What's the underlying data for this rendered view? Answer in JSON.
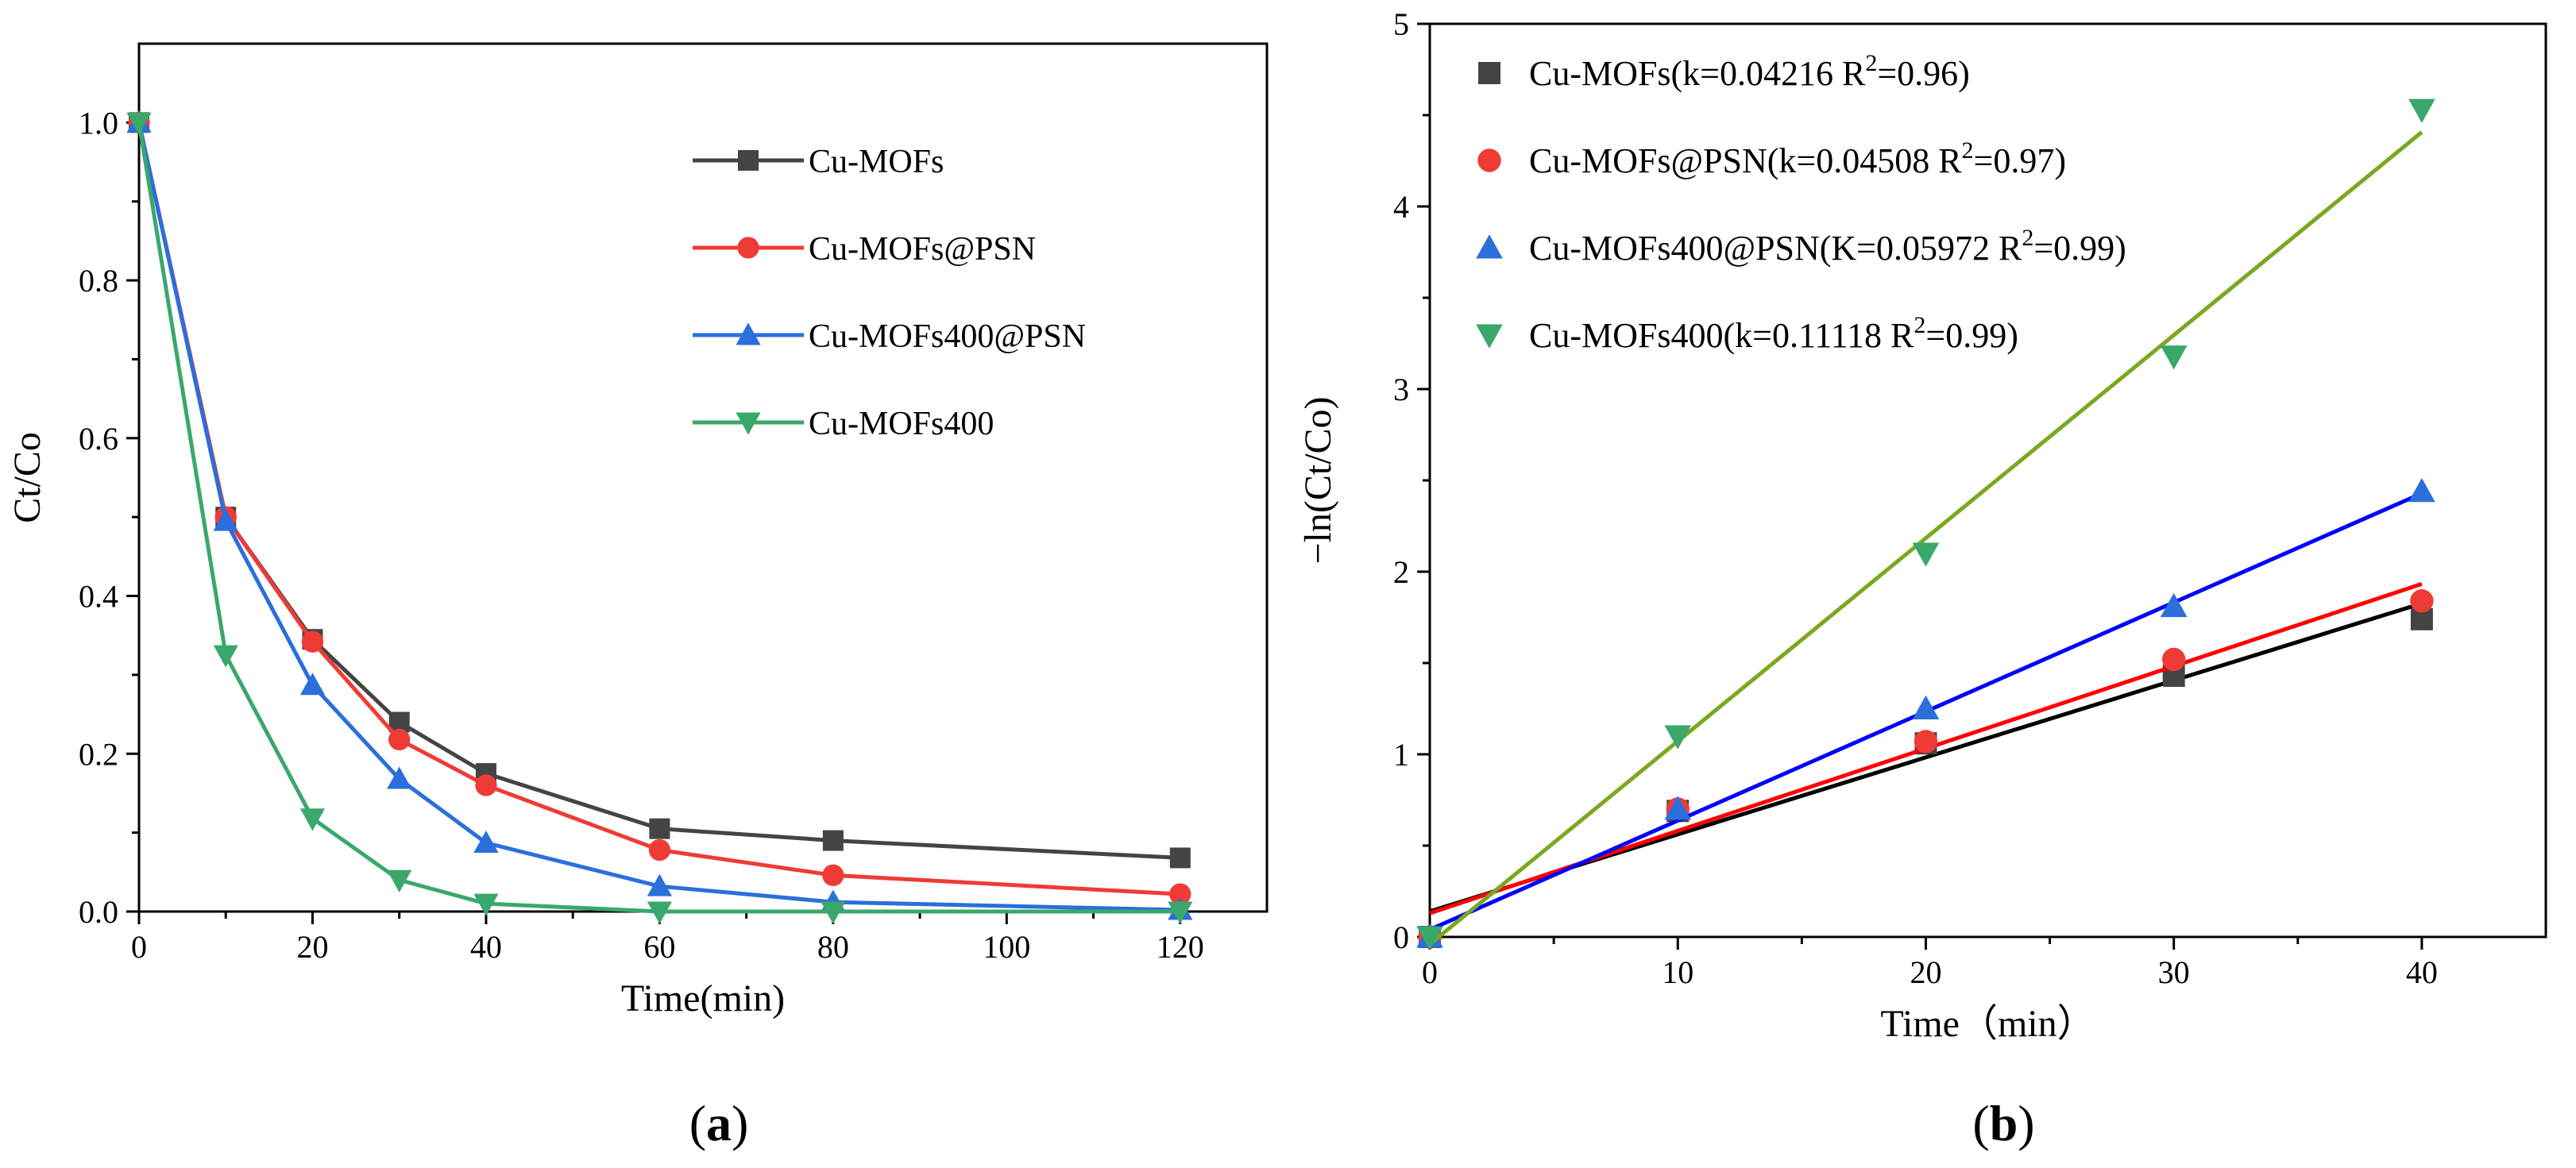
{
  "chart_data": [
    {
      "type": "line",
      "panel_label": "a",
      "xlabel": "Time(min)",
      "ylabel": "Ct/Co",
      "xlim": [
        0,
        130
      ],
      "ylim": [
        0,
        1.1
      ],
      "xticks": [
        0,
        20,
        40,
        60,
        80,
        100,
        120
      ],
      "yticks": [
        0.0,
        0.2,
        0.4,
        0.6,
        0.8,
        1.0
      ],
      "xtick_labels": [
        "0",
        "20",
        "40",
        "60",
        "80",
        "100",
        "120"
      ],
      "ytick_labels": [
        "0.0",
        "0.2",
        "0.4",
        "0.6",
        "0.8",
        "1.0"
      ],
      "legend_position": "top-right",
      "series": [
        {
          "name": "Cu-MOFs",
          "color": "#444444",
          "marker": "square",
          "x": [
            0,
            10,
            20,
            30,
            40,
            60,
            80,
            120
          ],
          "y": [
            1.0,
            0.5,
            0.345,
            0.24,
            0.175,
            0.105,
            0.09,
            0.068
          ]
        },
        {
          "name": "Cu-MOFs@PSN",
          "color": "#ef3b36",
          "marker": "circle",
          "x": [
            0,
            10,
            20,
            30,
            40,
            60,
            80,
            120
          ],
          "y": [
            1.0,
            0.5,
            0.342,
            0.218,
            0.16,
            0.078,
            0.046,
            0.022
          ]
        },
        {
          "name": "Cu-MOFs400@PSN",
          "color": "#2a6fdb",
          "marker": "triangle-up",
          "x": [
            0,
            10,
            20,
            30,
            40,
            60,
            80,
            120
          ],
          "y": [
            1.0,
            0.495,
            0.287,
            0.168,
            0.087,
            0.032,
            0.012,
            0.002
          ]
        },
        {
          "name": "Cu-MOFs400",
          "color": "#3aa86b",
          "marker": "triangle-down",
          "x": [
            0,
            10,
            20,
            30,
            40,
            60,
            80,
            120
          ],
          "y": [
            1.0,
            0.325,
            0.118,
            0.04,
            0.01,
            0.0,
            0.0,
            0.0
          ]
        }
      ]
    },
    {
      "type": "scatter",
      "panel_label": "b",
      "xlabel": "Time（min）",
      "ylabel": "−ln(Ct/Co)",
      "xlim": [
        0,
        45
      ],
      "ylim": [
        0,
        5
      ],
      "xticks": [
        0,
        10,
        20,
        30,
        40
      ],
      "yticks": [
        0,
        1,
        2,
        3,
        4,
        5
      ],
      "xtick_labels": [
        "0",
        "10",
        "20",
        "30",
        "40"
      ],
      "ytick_labels": [
        "0",
        "1",
        "2",
        "3",
        "4",
        "5"
      ],
      "legend_position": "top-left",
      "series": [
        {
          "name": "Cu-MOFs(k=0.04216 R",
          "name_sup": "2",
          "name_tail": "=0.96)",
          "color": "#444444",
          "marker": "square",
          "fit_color": "#000000",
          "x": [
            0,
            10,
            20,
            30,
            40
          ],
          "y": [
            0.0,
            0.69,
            1.06,
            1.43,
            1.74
          ],
          "fit": {
            "slope": 0.04216,
            "intercept": 0.14
          }
        },
        {
          "name": "Cu-MOFs@PSN(k=0.04508 R",
          "name_sup": "2",
          "name_tail": "=0.97)",
          "color": "#ef3b36",
          "marker": "circle",
          "fit_color": "#ff0000",
          "x": [
            0,
            10,
            20,
            30,
            40
          ],
          "y": [
            0.0,
            0.7,
            1.07,
            1.52,
            1.84
          ],
          "fit": {
            "slope": 0.04508,
            "intercept": 0.13
          }
        },
        {
          "name": "Cu-MOFs400@PSN(K=0.05972 R",
          "name_sup": "2",
          "name_tail": "=0.99)",
          "color": "#2a6fdb",
          "marker": "triangle-up",
          "fit_color": "#0000ff",
          "x": [
            0,
            10,
            20,
            30,
            40
          ],
          "y": [
            0.0,
            0.7,
            1.25,
            1.81,
            2.44
          ],
          "fit": {
            "slope": 0.05972,
            "intercept": 0.04
          }
        },
        {
          "name": "Cu-MOFs400(k=0.11118 R",
          "name_sup": "2",
          "name_tail": "=0.99)",
          "color": "#3aa86b",
          "marker": "triangle-down",
          "fit_color": "#7aa81e",
          "x": [
            0,
            10,
            20,
            30,
            40
          ],
          "y": [
            0.0,
            1.1,
            2.1,
            3.18,
            4.53
          ],
          "fit": {
            "slope": 0.11118,
            "intercept": -0.04
          }
        }
      ]
    }
  ]
}
